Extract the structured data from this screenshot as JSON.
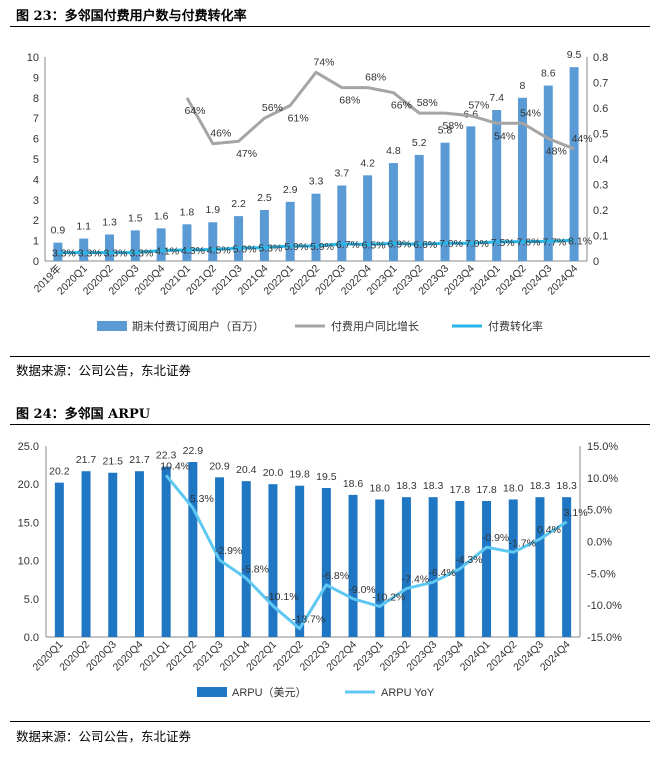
{
  "figure1": {
    "title": "图 23：多邻国付费用户数与付费转化率",
    "source": "数据来源：公司公告，东北证券",
    "chart_data": {
      "type": "bar",
      "categories": [
        "2019年",
        "2020Q1",
        "2020Q2",
        "2020Q3",
        "2020Q4",
        "2021Q1",
        "2021Q2",
        "2021Q3",
        "2021Q4",
        "2022Q1",
        "2022Q2",
        "2022Q3",
        "2022Q4",
        "2023Q1",
        "2023Q2",
        "2023Q3",
        "2023Q4",
        "2024Q1",
        "2024Q2",
        "2024Q3",
        "2024Q4"
      ],
      "series": [
        {
          "name": "期末付费订阅用户（百万）",
          "type": "bar",
          "axis": "left",
          "values": [
            0.9,
            1.1,
            1.3,
            1.5,
            1.6,
            1.8,
            1.9,
            2.2,
            2.5,
            2.9,
            3.3,
            3.7,
            4.2,
            4.8,
            5.2,
            5.8,
            6.6,
            7.4,
            8,
            8.6,
            9.5
          ],
          "labels": [
            "0.9",
            "1.1",
            "1.3",
            "1.5",
            "1.6",
            "1.8",
            "1.9",
            "2.2",
            "2.5",
            "2.9",
            "3.3",
            "3.7",
            "4.2",
            "4.8",
            "5.2",
            "5.8",
            "6.6",
            "7.4",
            "8",
            "8.6",
            "9.5"
          ]
        },
        {
          "name": "付费用户同比增长",
          "type": "line",
          "axis": "right",
          "values": [
            null,
            null,
            null,
            null,
            null,
            0.64,
            0.46,
            0.47,
            0.56,
            0.61,
            0.74,
            0.68,
            0.68,
            0.66,
            0.58,
            0.58,
            0.57,
            0.54,
            0.54,
            0.48,
            0.44
          ],
          "labels": [
            "",
            "",
            "",
            "",
            "",
            "64%",
            "46%",
            "47%",
            "56%",
            "61%",
            "74%",
            "68%",
            "68%",
            "66%",
            "58%",
            "58%",
            "57%",
            "54%",
            "54%",
            "48%",
            "44%"
          ]
        },
        {
          "name": "付费转化率",
          "type": "line",
          "axis": "right",
          "values": [
            0.033,
            0.033,
            0.033,
            0.033,
            0.041,
            0.043,
            0.045,
            0.05,
            0.053,
            0.059,
            0.059,
            0.067,
            0.065,
            0.069,
            0.066,
            0.07,
            0.07,
            0.075,
            0.076,
            0.077,
            0.081
          ],
          "labels": [
            "3.3%",
            "3.3%",
            "3.3%",
            "3.3%",
            "4.1%",
            "4.3%",
            "4.5%",
            "5.0%",
            "5.3%",
            "5.9%",
            "5.9%",
            "6.7%",
            "6.5%",
            "6.9%",
            "6.6%",
            "7.0%",
            "7.0%",
            "7.5%",
            "7.6%",
            "7.7%",
            "8.1%"
          ]
        }
      ],
      "ylim_left": [
        0,
        10
      ],
      "yticks_left": [
        "0",
        "1",
        "2",
        "3",
        "4",
        "5",
        "6",
        "7",
        "8",
        "9",
        "10"
      ],
      "ylim_right": [
        0,
        0.8
      ],
      "yticks_right": [
        "0",
        "0.1",
        "0.2",
        "0.3",
        "0.4",
        "0.5",
        "0.6",
        "0.7",
        "0.8"
      ],
      "grid": false,
      "legend_position": "bottom",
      "colors": {
        "bar": "#5b9bd5",
        "yoy": "#a5a5a5",
        "conv": "#29b6e8"
      }
    }
  },
  "figure2": {
    "title": "图 24：多邻国 ARPU",
    "source": "数据来源：公司公告，东北证券",
    "chart_data": {
      "type": "bar",
      "categories": [
        "2020Q1",
        "2020Q2",
        "2020Q3",
        "2020Q4",
        "2021Q1",
        "2021Q2",
        "2021Q3",
        "2021Q4",
        "2022Q1",
        "2022Q2",
        "2022Q3",
        "2022Q4",
        "2023Q1",
        "2023Q2",
        "2023Q3",
        "2023Q4",
        "2024Q1",
        "2024Q2",
        "2024Q3",
        "2024Q4"
      ],
      "series": [
        {
          "name": "ARPU（美元）",
          "type": "bar",
          "axis": "left",
          "values": [
            20.2,
            21.7,
            21.5,
            21.7,
            22.3,
            22.9,
            20.9,
            20.4,
            20.0,
            19.8,
            19.5,
            18.6,
            18.0,
            18.3,
            18.3,
            17.8,
            17.8,
            18.0,
            18.3,
            18.3
          ],
          "labels": [
            "20.2",
            "21.7",
            "21.5",
            "21.7",
            "22.3",
            "22.9",
            "20.9",
            "20.4",
            "20.0",
            "19.8",
            "19.5",
            "18.6",
            "18.0",
            "18.3",
            "18.3",
            "17.8",
            "17.8",
            "18.0",
            "18.3",
            "18.3"
          ]
        },
        {
          "name": "ARPU YoY",
          "type": "line",
          "axis": "right",
          "values": [
            null,
            null,
            null,
            null,
            0.104,
            0.053,
            -0.029,
            -0.058,
            -0.101,
            -0.137,
            -0.068,
            -0.09,
            -0.102,
            -0.074,
            -0.064,
            -0.043,
            -0.009,
            -0.017,
            0.004,
            0.031
          ],
          "labels": [
            "",
            "",
            "",
            "",
            "10.4%",
            "5.3%",
            "-2.9%",
            "-5.8%",
            "-10.1%",
            "-13.7%",
            "-6.8%",
            "-9.0%",
            "-10.2%",
            "-7.4%",
            "-6.4%",
            "-4.3%",
            "-0.9%",
            "-1.7%",
            "0.4%",
            "3.1%"
          ]
        }
      ],
      "ylim_left": [
        0,
        25
      ],
      "yticks_left": [
        "0.0",
        "5.0",
        "10.0",
        "15.0",
        "20.0",
        "25.0"
      ],
      "ylim_right": [
        -0.15,
        0.15
      ],
      "yticks_right": [
        "-15.0%",
        "-10.0%",
        "-5.0%",
        "0.0%",
        "5.0%",
        "10.0%",
        "15.0%"
      ],
      "grid": false,
      "legend_position": "bottom",
      "colors": {
        "bar": "#1f77c4",
        "yoy": "#5ec8f2"
      }
    }
  }
}
